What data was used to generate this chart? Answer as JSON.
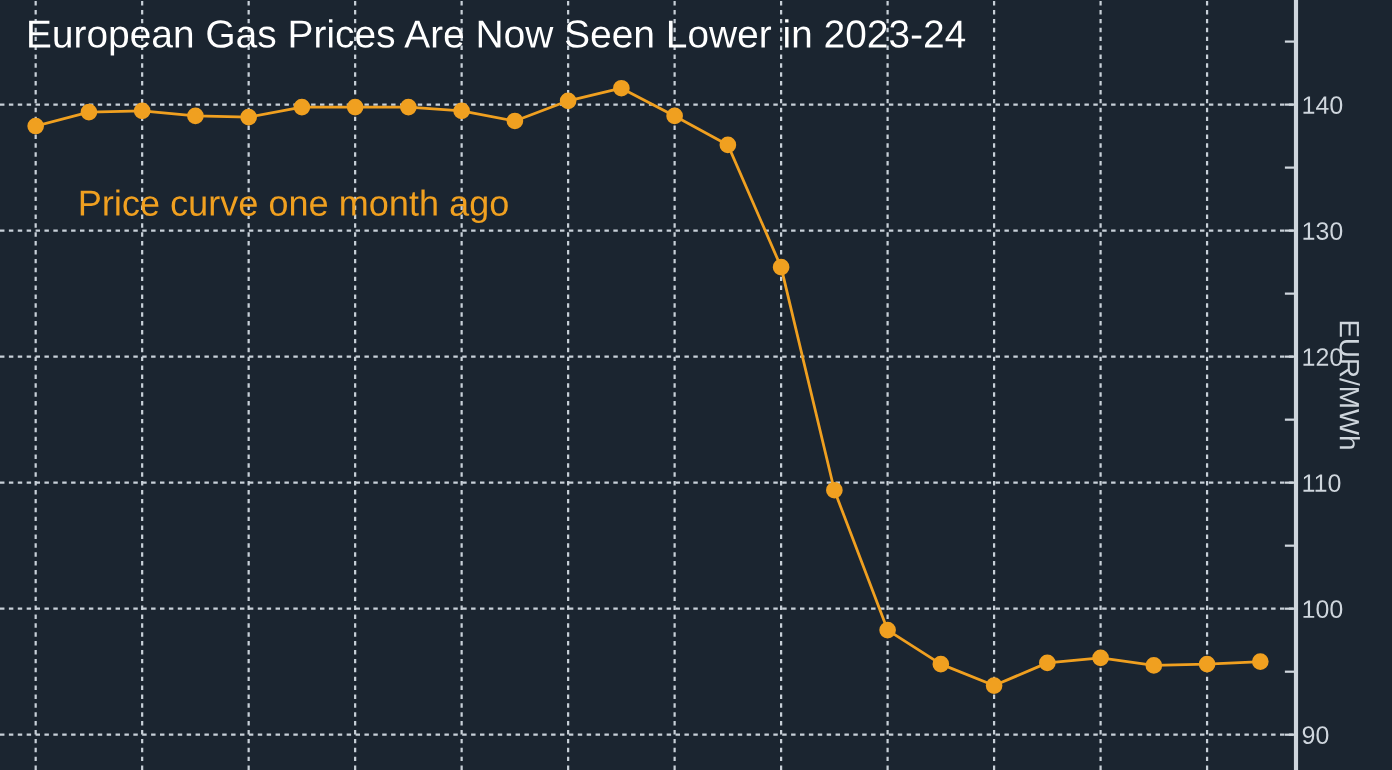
{
  "chart_data": {
    "type": "line",
    "title": "European Gas Prices Are Now Seen Lower in 2023-24",
    "ylabel": "EUR/MWh",
    "categories": [
      null,
      null,
      null,
      null,
      null,
      null,
      null,
      null,
      null,
      null,
      null,
      null,
      null,
      null,
      null,
      null,
      null,
      null,
      null,
      null,
      null,
      null,
      null,
      null
    ],
    "series": [
      {
        "name": "Price curve one month ago",
        "color": "#f0a020",
        "values": [
          138.3,
          139.4,
          139.5,
          139.1,
          139.0,
          139.8,
          139.8,
          139.8,
          139.5,
          138.7,
          140.3,
          141.3,
          139.1,
          136.8,
          127.1,
          109.4,
          98.3,
          95.6,
          93.9,
          95.7,
          96.1,
          95.5,
          95.6,
          95.8
        ]
      }
    ],
    "ylim": [
      87.2,
      148.3
    ],
    "yticks": [
      90,
      {
        "value": 95,
        "label": null
      },
      100,
      {
        "value": 105,
        "label": null
      },
      110,
      {
        "value": 115,
        "label": null
      },
      120,
      {
        "value": 125,
        "label": null
      },
      130,
      {
        "value": 135,
        "label": null
      },
      140,
      {
        "value": 145,
        "label": null
      }
    ],
    "grid": true,
    "marker": "circle",
    "line_style": "solid",
    "tick_labels": "y",
    "legend": false
  }
}
